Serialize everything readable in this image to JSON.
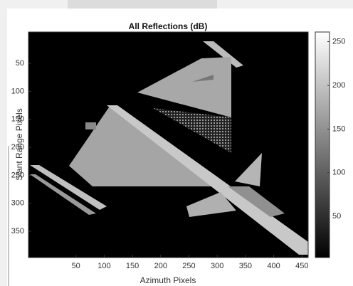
{
  "chart_data": {
    "type": "image",
    "title": "All Reflections (dB)",
    "x_label": "Azimuth Pixels",
    "y_label": "Slant Range Pixels",
    "xlim": [
      -34,
      461
    ],
    "ylim": [
      -6,
      397
    ],
    "y_reversed": true,
    "xticks": [
      50,
      100,
      150,
      200,
      250,
      300,
      350,
      400,
      450
    ],
    "yticks": [
      50,
      100,
      150,
      200,
      250,
      300,
      350
    ],
    "colormap": "gray",
    "colorbar": {
      "lim": [
        3,
        261
      ],
      "ticks": [
        50,
        100,
        150,
        200,
        250
      ]
    }
  }
}
